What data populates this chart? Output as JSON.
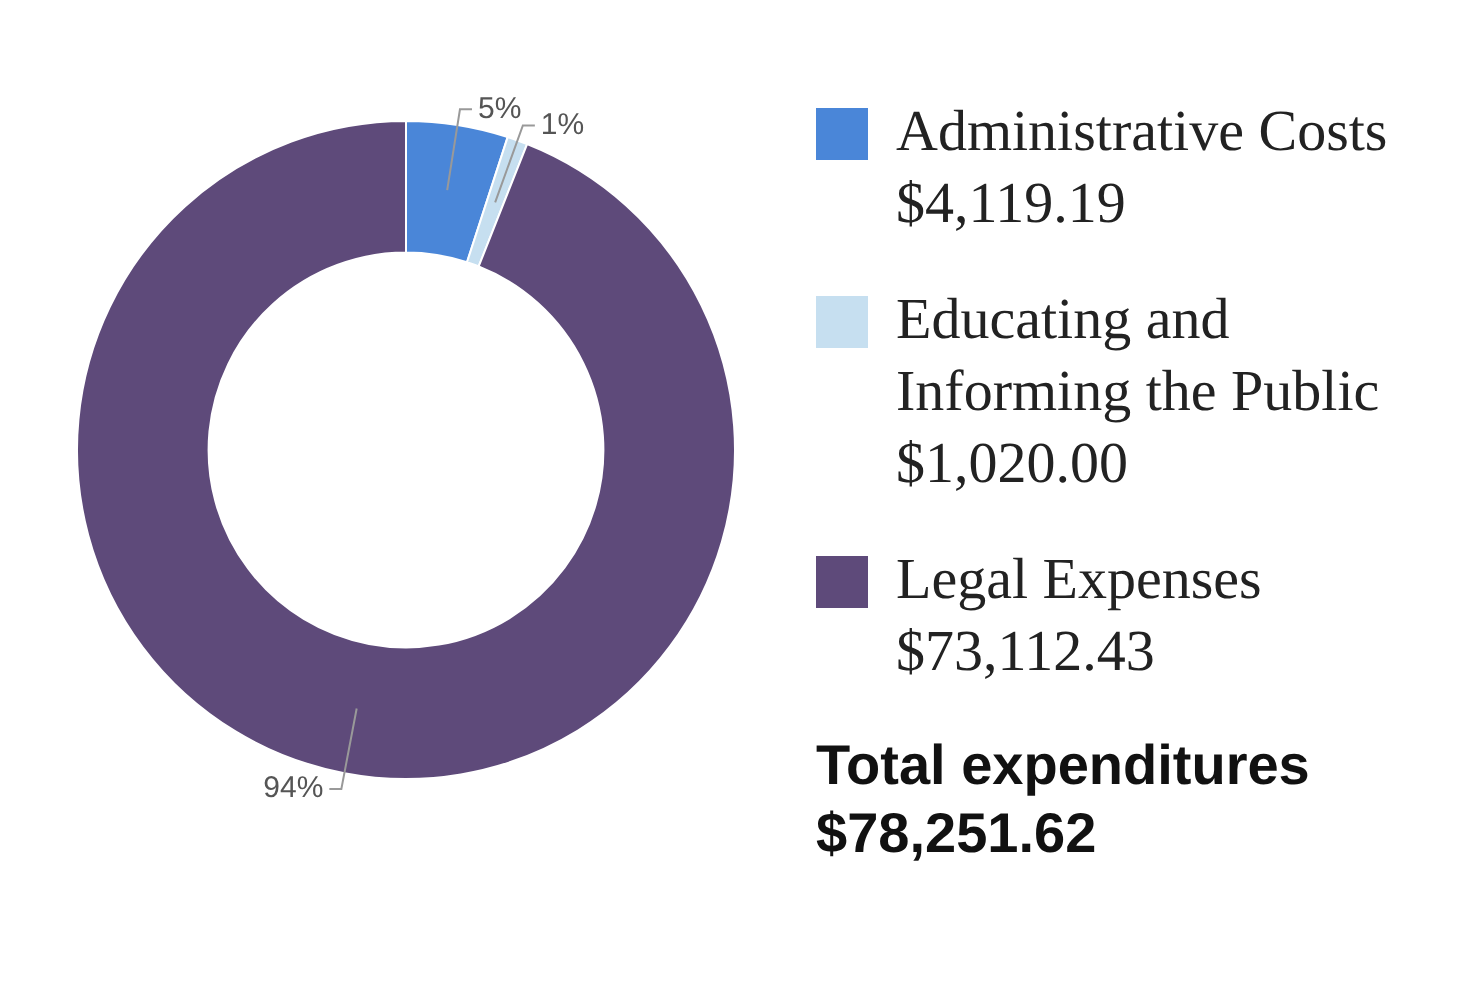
{
  "chart_data": {
    "type": "donut",
    "categories": [
      "Administrative Costs $4,119.19",
      "Educating and Informing the Public $1,020.00",
      "Legal Expenses $73,112.43"
    ],
    "values": [
      5,
      1,
      94
    ],
    "value_labels": [
      "5%",
      "1%",
      "94%"
    ],
    "colors": [
      "#4a86d8",
      "#c6dff0",
      "#5e4a7a"
    ],
    "legend": "right",
    "annotations": [
      "Total expenditures $78,251.62"
    ]
  }
}
